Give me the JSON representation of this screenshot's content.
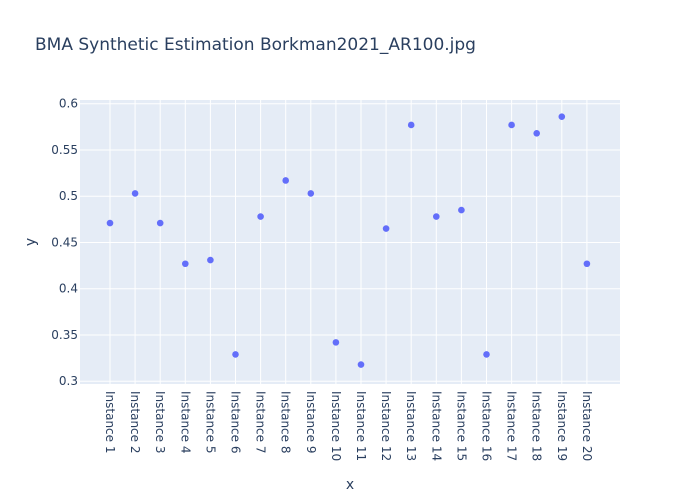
{
  "chart_data": {
    "type": "scatter",
    "title": "BMA Synthetic Estimation Borkman2021_AR100.jpg",
    "xlabel": "x",
    "ylabel": "y",
    "ylim": [
      0.297,
      0.604
    ],
    "yticks": [
      0.3,
      0.35,
      0.4,
      0.45,
      0.5,
      0.55,
      0.6
    ],
    "ytick_labels": [
      "0.3",
      "0.35",
      "0.4",
      "0.45",
      "0.5",
      "0.55",
      "0.6"
    ],
    "grid": true,
    "categories": [
      "Instance 1",
      "Instance 2",
      "Instance 3",
      "Instance 4",
      "Instance 5",
      "Instance 6",
      "Instance 7",
      "Instance 8",
      "Instance 9",
      "Instance 10",
      "Instance 11",
      "Instance 12",
      "Instance 13",
      "Instance 14",
      "Instance 15",
      "Instance 16",
      "Instance 17",
      "Instance 18",
      "Instance 19",
      "Instance 20"
    ],
    "values": [
      0.471,
      0.503,
      0.471,
      0.427,
      0.431,
      0.329,
      0.478,
      0.517,
      0.503,
      0.342,
      0.318,
      0.465,
      0.577,
      0.478,
      0.485,
      0.329,
      0.577,
      0.568,
      0.586,
      0.427
    ],
    "colors": {
      "marker": "#636efa",
      "plot_bg": "#e5ecf6",
      "grid": "#ffffff",
      "text": "#2a3f5f"
    }
  }
}
